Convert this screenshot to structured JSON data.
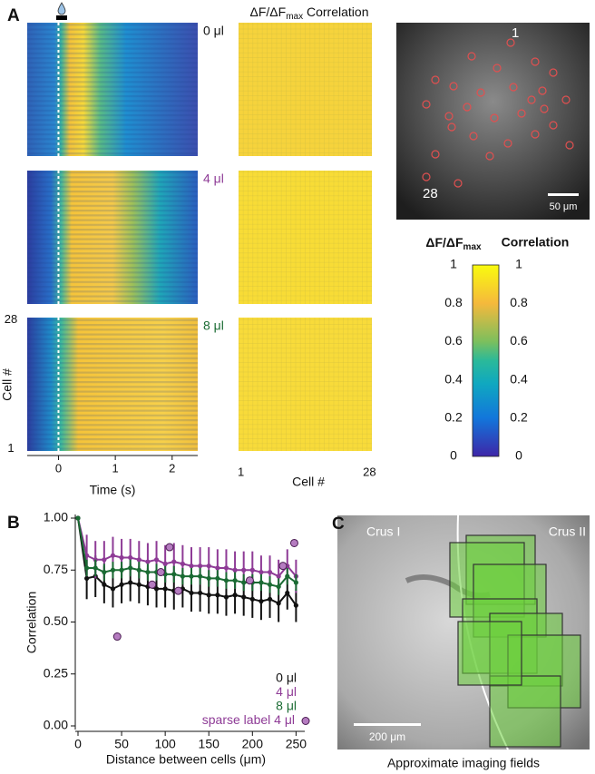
{
  "chart_data": [
    {
      "type": "heatmap",
      "panel_label": "A",
      "column_title": {
        "main": "ΔF/ΔF",
        "sub": "max",
        "rest": " Correlation"
      },
      "conditions": [
        {
          "name": "0 μl",
          "color": "#111111"
        },
        {
          "name": "4 μl",
          "color": "#8e3b96"
        },
        {
          "name": "8 μl",
          "color": "#1a6b33"
        }
      ],
      "xlabel": "Time (s)",
      "xlim": [
        -0.55,
        2.45
      ],
      "xticks": [
        0,
        1,
        2
      ],
      "ylabel": "Cell #",
      "ylim": [
        0.5,
        28.5
      ],
      "yticks": [
        1,
        28
      ],
      "matrix_xlabel": "Cell #",
      "matrix_xlim": [
        0.5,
        28.5
      ],
      "matrix_xticks": [
        1,
        28
      ]
    },
    {
      "type": "line",
      "panel_label": "B",
      "xlabel": "Distance between cells (μm)",
      "ylabel": "Correlation",
      "x": [
        0,
        10,
        20,
        30,
        40,
        50,
        60,
        70,
        80,
        90,
        100,
        110,
        120,
        130,
        140,
        150,
        160,
        170,
        180,
        190,
        200,
        210,
        220,
        230,
        240,
        250
      ],
      "xlim": [
        0,
        260
      ],
      "xticks": [
        0,
        50,
        100,
        150,
        200,
        250
      ],
      "ylim": [
        0,
        1
      ],
      "yticks": [
        {
          "value": 0,
          "label": "0.00"
        },
        {
          "value": 0.25,
          "label": "0.25"
        },
        {
          "value": 0.5,
          "label": "0.50"
        },
        {
          "value": 0.75,
          "label": "0.75"
        },
        {
          "value": 1,
          "label": "1.00"
        }
      ],
      "legend": "lower right",
      "series": [
        {
          "name": "0 μl",
          "color": "#111111",
          "values": [
            1.0,
            0.71,
            0.72,
            0.68,
            0.66,
            0.68,
            0.69,
            0.68,
            0.67,
            0.66,
            0.66,
            0.65,
            0.66,
            0.64,
            0.64,
            0.63,
            0.63,
            0.62,
            0.63,
            0.62,
            0.61,
            0.6,
            0.61,
            0.59,
            0.64,
            0.58
          ],
          "errors": [
            0,
            0.1,
            0.1,
            0.09,
            0.09,
            0.09,
            0.09,
            0.09,
            0.09,
            0.09,
            0.09,
            0.09,
            0.09,
            0.09,
            0.09,
            0.09,
            0.09,
            0.09,
            0.09,
            0.09,
            0.09,
            0.09,
            0.09,
            0.09,
            0.08,
            0.08
          ]
        },
        {
          "name": "4 μl",
          "color": "#8e3b96",
          "values": [
            1.0,
            0.82,
            0.8,
            0.8,
            0.82,
            0.81,
            0.81,
            0.8,
            0.79,
            0.8,
            0.78,
            0.79,
            0.78,
            0.77,
            0.77,
            0.77,
            0.76,
            0.76,
            0.75,
            0.75,
            0.75,
            0.74,
            0.74,
            0.72,
            0.77,
            0.72
          ],
          "errors": [
            0,
            0.1,
            0.09,
            0.09,
            0.09,
            0.09,
            0.09,
            0.09,
            0.09,
            0.09,
            0.09,
            0.09,
            0.09,
            0.09,
            0.09,
            0.09,
            0.09,
            0.09,
            0.09,
            0.09,
            0.09,
            0.08,
            0.08,
            0.08,
            0.08,
            0.08
          ]
        },
        {
          "name": "8 μl",
          "color": "#1a6b33",
          "values": [
            1.0,
            0.76,
            0.76,
            0.74,
            0.75,
            0.75,
            0.76,
            0.75,
            0.74,
            0.74,
            0.73,
            0.73,
            0.72,
            0.72,
            0.72,
            0.71,
            0.71,
            0.7,
            0.7,
            0.69,
            0.69,
            0.69,
            0.68,
            0.67,
            0.72,
            0.69
          ],
          "errors": [
            0,
            0.04,
            0.04,
            0.04,
            0.04,
            0.04,
            0.04,
            0.04,
            0.04,
            0.04,
            0.04,
            0.04,
            0.04,
            0.04,
            0.04,
            0.04,
            0.04,
            0.04,
            0.04,
            0.04,
            0.04,
            0.04,
            0.04,
            0.04,
            0.04,
            0.04
          ]
        },
        {
          "name": "sparse label 4 μl",
          "color": "#b57cc0",
          "type": "scatter",
          "x": [
            45,
            85,
            95,
            105,
            115,
            197,
            235,
            248
          ],
          "values": [
            0.43,
            0.68,
            0.74,
            0.86,
            0.65,
            0.7,
            0.77,
            0.88
          ]
        }
      ]
    }
  ],
  "image": {
    "cell_labels": [
      "1",
      "28"
    ],
    "scale_bar": "50 μm"
  },
  "colorbar": {
    "left_title": {
      "main": "ΔF/ΔF",
      "sub": "max"
    },
    "right_title": "Correlation",
    "lim": [
      0,
      1
    ],
    "ticks": [
      0,
      0.2,
      0.4,
      0.6,
      0.8,
      1
    ]
  },
  "panel_c": {
    "label": "C",
    "regions": [
      "Crus I",
      "Crus II"
    ],
    "scale_bar": "200 μm",
    "caption": "Approximate imaging fields"
  }
}
